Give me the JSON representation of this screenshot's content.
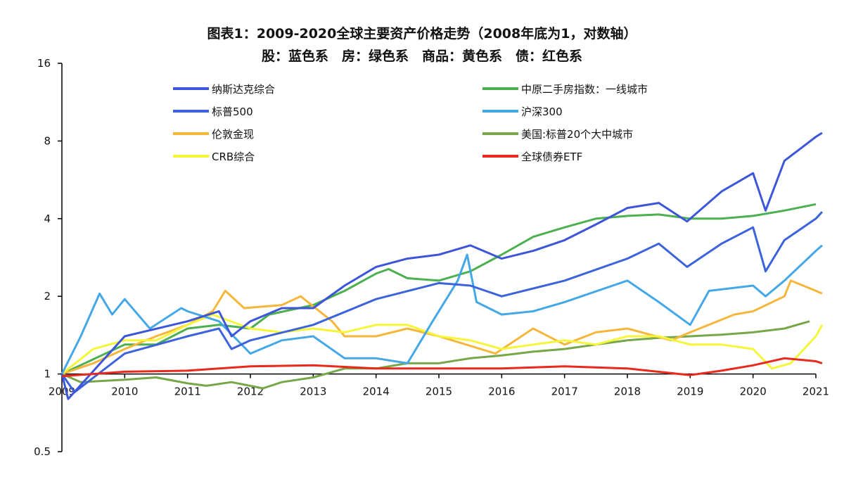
{
  "chart_data": {
    "type": "line",
    "title": "图表1：2009-2020全球主要资产价格走势（2008年底为1，对数轴）",
    "subtitle": "股：蓝色系　房：绿色系　商品：黄色系　债：红色系",
    "xlabel": "",
    "ylabel": "",
    "yscale": "log2",
    "ylim": [
      0.5,
      16
    ],
    "xlim": [
      2009,
      2021.1
    ],
    "yticks": [
      {
        "v": 16,
        "label": "16"
      },
      {
        "v": 8,
        "label": "8"
      },
      {
        "v": 4,
        "label": "4"
      },
      {
        "v": 2,
        "label": "2"
      },
      {
        "v": 1,
        "label": "1"
      },
      {
        "v": 0.5,
        "label": "0.5"
      }
    ],
    "xticks": [
      "2009",
      "2010",
      "2011",
      "2012",
      "2013",
      "2014",
      "2015",
      "2016",
      "2017",
      "2018",
      "2019",
      "2020",
      "2021"
    ],
    "legend_position": "top",
    "series": [
      {
        "name": "美国:标普20个大中城市",
        "color": "#77a748",
        "x": [
          2009,
          2009.3,
          2010,
          2010.5,
          2011,
          2011.3,
          2011.7,
          2012.2,
          2012.5,
          2013,
          2013.5,
          2014,
          2014.5,
          2015,
          2015.5,
          2016,
          2016.5,
          2017,
          2017.5,
          2018,
          2018.5,
          2019,
          2019.5,
          2020,
          2020.5,
          2020.9
        ],
        "y": [
          1.0,
          0.93,
          0.95,
          0.97,
          0.92,
          0.9,
          0.93,
          0.88,
          0.93,
          0.97,
          1.05,
          1.05,
          1.1,
          1.1,
          1.15,
          1.18,
          1.22,
          1.25,
          1.3,
          1.35,
          1.38,
          1.4,
          1.42,
          1.45,
          1.5,
          1.6
        ]
      },
      {
        "name": "中原二手房指数：一线城市",
        "color": "#4caf50",
        "x": [
          2009,
          2010,
          2010.5,
          2011,
          2011.5,
          2012,
          2012.3,
          2013,
          2013.5,
          2014,
          2014.2,
          2014.5,
          2015,
          2015.5,
          2016,
          2016.5,
          2017,
          2017.5,
          2018,
          2018.5,
          2019,
          2019.5,
          2020,
          2020.5,
          2021
        ],
        "y": [
          1.0,
          1.3,
          1.3,
          1.5,
          1.55,
          1.5,
          1.7,
          1.85,
          2.1,
          2.45,
          2.55,
          2.35,
          2.3,
          2.5,
          2.9,
          3.4,
          3.7,
          4.0,
          4.1,
          4.15,
          4.0,
          4.0,
          4.1,
          4.3,
          4.55
        ]
      },
      {
        "name": "伦敦金现",
        "color": "#f5b73b",
        "x": [
          2009,
          2009.5,
          2010,
          2010.5,
          2011,
          2011.4,
          2011.6,
          2011.9,
          2012.5,
          2012.8,
          2013.3,
          2013.5,
          2014,
          2014.5,
          2015,
          2015.9,
          2016.5,
          2017,
          2017.5,
          2018,
          2018.7,
          2019,
          2019.7,
          2020,
          2020.5,
          2020.6,
          2021,
          2021.1
        ],
        "y": [
          1.0,
          1.1,
          1.25,
          1.4,
          1.55,
          1.75,
          2.1,
          1.8,
          1.85,
          2.0,
          1.6,
          1.4,
          1.4,
          1.5,
          1.4,
          1.2,
          1.5,
          1.3,
          1.45,
          1.5,
          1.35,
          1.45,
          1.7,
          1.75,
          2.0,
          2.3,
          2.1,
          2.05
        ]
      },
      {
        "name": "CRB综合",
        "color": "#f5f53a",
        "x": [
          2009,
          2009.5,
          2010,
          2010.5,
          2011,
          2011.4,
          2012,
          2012.5,
          2013,
          2013.5,
          2014,
          2014.5,
          2015,
          2015.5,
          2016,
          2016.5,
          2017,
          2017.5,
          2018,
          2018.5,
          2019,
          2019.5,
          2020,
          2020.3,
          2020.6,
          2021,
          2021.1
        ],
        "y": [
          1.0,
          1.25,
          1.35,
          1.35,
          1.55,
          1.7,
          1.5,
          1.45,
          1.5,
          1.45,
          1.55,
          1.55,
          1.4,
          1.35,
          1.25,
          1.3,
          1.35,
          1.3,
          1.4,
          1.4,
          1.3,
          1.3,
          1.25,
          1.05,
          1.1,
          1.4,
          1.55
        ]
      },
      {
        "name": "沪深300",
        "color": "#45a8e6",
        "x": [
          2009,
          2009.3,
          2009.6,
          2009.8,
          2010,
          2010.4,
          2010.9,
          2011,
          2011.5,
          2012,
          2012.5,
          2013,
          2013.5,
          2014,
          2014.5,
          2014.9,
          2015.3,
          2015.45,
          2015.6,
          2016,
          2016.5,
          2017,
          2018,
          2018.5,
          2019,
          2019.3,
          2020,
          2020.2,
          2020.5,
          2021,
          2021.1
        ],
        "y": [
          1.0,
          1.4,
          2.05,
          1.7,
          1.95,
          1.5,
          1.8,
          1.75,
          1.6,
          1.2,
          1.35,
          1.4,
          1.15,
          1.15,
          1.1,
          1.6,
          2.3,
          2.9,
          1.9,
          1.7,
          1.75,
          1.9,
          2.3,
          1.9,
          1.55,
          2.1,
          2.2,
          2.0,
          2.3,
          3.0,
          3.15
        ]
      },
      {
        "name": "标普500",
        "color": "#3c63db",
        "x": [
          2009,
          2009.2,
          2010,
          2011,
          2011.5,
          2011.7,
          2012,
          2013,
          2014,
          2015,
          2015.5,
          2016,
          2017,
          2018,
          2018.5,
          2018.95,
          2019.5,
          2020,
          2020.2,
          2020.5,
          2021,
          2021.1
        ],
        "y": [
          1.0,
          0.85,
          1.2,
          1.4,
          1.5,
          1.25,
          1.35,
          1.55,
          1.95,
          2.25,
          2.2,
          2.0,
          2.3,
          2.8,
          3.2,
          2.6,
          3.2,
          3.7,
          2.5,
          3.3,
          4.0,
          4.25
        ]
      },
      {
        "name": "纳斯达克综合",
        "color": "#3d55d8",
        "x": [
          2009,
          2009.1,
          2010,
          2011,
          2011.5,
          2011.7,
          2012,
          2012.5,
          2013,
          2013.5,
          2014,
          2014.5,
          2015,
          2015.5,
          2016,
          2016.5,
          2017,
          2017.5,
          2018,
          2018.5,
          2018.95,
          2019.5,
          2020,
          2020.2,
          2020.5,
          2021,
          2021.1
        ],
        "y": [
          1.0,
          0.8,
          1.4,
          1.6,
          1.75,
          1.4,
          1.6,
          1.8,
          1.8,
          2.2,
          2.6,
          2.8,
          2.9,
          3.15,
          2.8,
          3.0,
          3.3,
          3.8,
          4.4,
          4.6,
          3.9,
          5.1,
          6.0,
          4.3,
          6.7,
          8.3,
          8.6
        ]
      },
      {
        "name": "全球债券ETF",
        "color": "#e8291c",
        "x": [
          2009,
          2010,
          2011,
          2012,
          2013,
          2014,
          2015,
          2016,
          2017,
          2018,
          2019,
          2019.5,
          2020,
          2020.5,
          2021,
          2021.1
        ],
        "y": [
          0.98,
          1.02,
          1.03,
          1.07,
          1.08,
          1.05,
          1.05,
          1.05,
          1.07,
          1.05,
          0.99,
          1.03,
          1.08,
          1.15,
          1.12,
          1.1
        ]
      }
    ],
    "legend": [
      "纳斯达克综合",
      "中原二手房指数：一线城市",
      "标普500",
      "沪深300",
      "伦敦金现",
      "美国:标普20个大中城市",
      "CRB综合",
      "全球债券ETF"
    ]
  }
}
